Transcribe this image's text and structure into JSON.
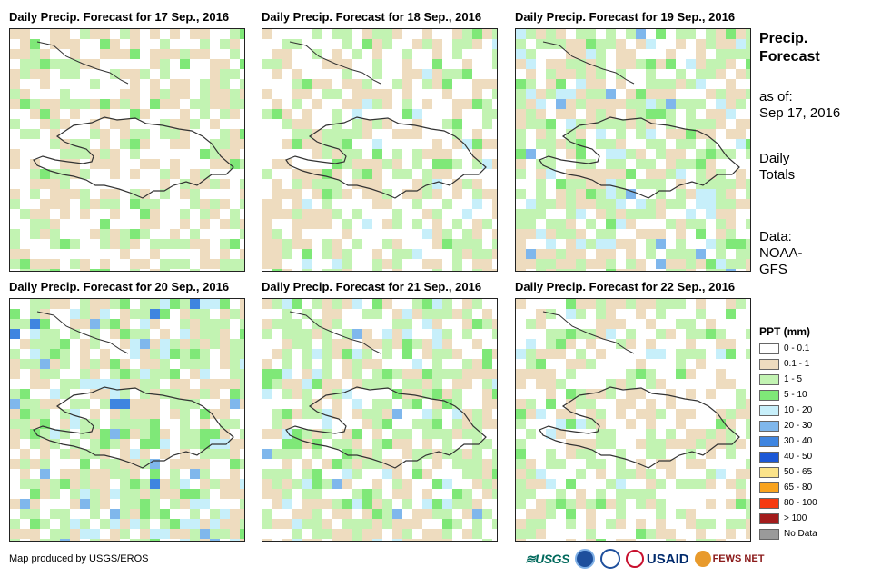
{
  "panels": [
    {
      "title": "Daily Precip. Forecast for 17 Sep., 2016"
    },
    {
      "title": "Daily Precip. Forecast for 18 Sep., 2016"
    },
    {
      "title": "Daily Precip. Forecast for 19 Sep., 2016"
    },
    {
      "title": "Daily Precip. Forecast for 20 Sep., 2016"
    },
    {
      "title": "Daily Precip. Forecast for 21 Sep., 2016"
    },
    {
      "title": "Daily Precip. Forecast for 22 Sep., 2016"
    }
  ],
  "sidebar": {
    "title_line1": "Precip.",
    "title_line2": "Forecast",
    "asof_line1": "as of:",
    "asof_line2": "Sep 17, 2016",
    "daily_line1": "Daily",
    "daily_line2": "Totals",
    "data_line1": "Data:",
    "data_line2": "NOAA-",
    "data_line3": "GFS"
  },
  "legend": {
    "title": "PPT (mm)",
    "items": [
      {
        "label": "0 - 0.1",
        "color": "#ffffff"
      },
      {
        "label": "0.1 - 1",
        "color": "#eedcbf"
      },
      {
        "label": "1 - 5",
        "color": "#c2f3b2"
      },
      {
        "label": "5 - 10",
        "color": "#7fe878"
      },
      {
        "label": "10 - 20",
        "color": "#c7effa"
      },
      {
        "label": "20 - 30",
        "color": "#7fb7ec"
      },
      {
        "label": "30 - 40",
        "color": "#3f85e0"
      },
      {
        "label": "40 - 50",
        "color": "#1c58d6"
      },
      {
        "label": "50 - 65",
        "color": "#fbe38a"
      },
      {
        "label": "65 - 80",
        "color": "#f8a31e"
      },
      {
        "label": "80 - 100",
        "color": "#f53a10"
      },
      {
        "label": "> 100",
        "color": "#a31c1c"
      },
      {
        "label": "No Data",
        "color": "#9a9a9a"
      }
    ]
  },
  "credit": "Map produced by USGS/EROS",
  "logos": [
    "USGS",
    "NOAA",
    "USAID",
    "FEWS NET"
  ],
  "logo_text": {
    "usgs": "≋USGS",
    "usaid": "USAID",
    "fews": "FEWS NET"
  }
}
